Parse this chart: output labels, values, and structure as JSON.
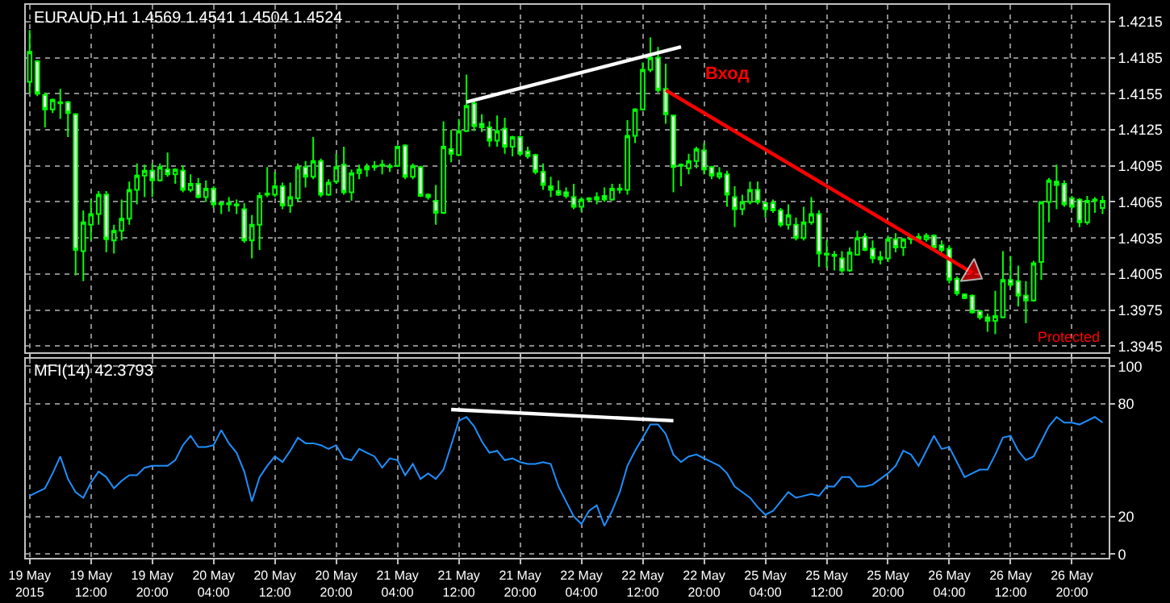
{
  "chart_data": [
    {
      "type": "candlestick",
      "title": "EURAUD,H1 1.4569 1.4541 1.4504 1.4524",
      "categories": [
        "19 May 2015",
        null,
        null,
        null,
        null,
        null,
        null,
        null,
        "19 May 12:00",
        null,
        null,
        null,
        null,
        null,
        null,
        null,
        "19 May 20:00",
        null,
        null,
        null,
        null,
        null,
        null,
        null,
        "20 May 04:00",
        null,
        null,
        null,
        null,
        null,
        null,
        null,
        "20 May 12:00",
        null,
        null,
        null,
        null,
        null,
        null,
        null,
        "20 May 20:00",
        null,
        null,
        null,
        null,
        null,
        null,
        null,
        "21 May 04:00",
        null,
        null,
        null,
        null,
        null,
        null,
        null,
        "21 May 12:00",
        null,
        null,
        null,
        null,
        null,
        null,
        null,
        "21 May 20:00",
        null,
        null,
        null,
        null,
        null,
        null,
        null,
        "22 May 04:00",
        null,
        null,
        null,
        null,
        null,
        null,
        null,
        "22 May 12:00",
        null,
        null,
        null,
        null,
        null,
        null,
        null,
        "22 May 20:00",
        null,
        null,
        null,
        null,
        null,
        null,
        null,
        "25 May 04:00",
        null,
        null,
        null,
        null,
        null,
        null,
        null,
        "25 May 12:00",
        null,
        null,
        null,
        null,
        null,
        null,
        null,
        "25 May 20:00",
        null,
        null,
        null,
        null,
        null,
        null,
        null,
        "26 May 04:00",
        null,
        null,
        null,
        null,
        null,
        null,
        null,
        "26 May 12:00",
        null,
        null,
        null,
        null,
        null,
        null,
        null,
        "26 May 20:00",
        null,
        null,
        null,
        null
      ],
      "ohlc": [
        [
          1.4165,
          1.4208,
          1.4155,
          1.419
        ],
        [
          1.4182,
          1.4183,
          1.4153,
          1.4155
        ],
        [
          1.4154,
          1.4156,
          1.4127,
          1.4142
        ],
        [
          1.4142,
          1.4151,
          1.4139,
          1.415
        ],
        [
          1.4147,
          1.4159,
          1.4134,
          1.4148
        ],
        [
          1.4148,
          1.4149,
          1.4119,
          1.4139
        ],
        [
          1.4138,
          1.4139,
          1.4004,
          1.4025
        ],
        [
          1.4024,
          1.4058,
          1.3999,
          1.4048
        ],
        [
          1.4046,
          1.4067,
          1.4033,
          1.4055
        ],
        [
          1.4055,
          1.4074,
          1.4046,
          1.4071
        ],
        [
          1.4071,
          1.4074,
          1.4023,
          1.4034
        ],
        [
          1.4033,
          1.4046,
          1.4022,
          1.4041
        ],
        [
          1.4041,
          1.4067,
          1.4033,
          1.4051
        ],
        [
          1.4051,
          1.4082,
          1.4046,
          1.4075
        ],
        [
          1.4075,
          1.4097,
          1.4063,
          1.4087
        ],
        [
          1.4087,
          1.4096,
          1.4069,
          1.4091
        ],
        [
          1.4091,
          1.4097,
          1.4069,
          1.4083
        ],
        [
          1.4083,
          1.4097,
          1.4082,
          1.4094
        ],
        [
          1.4092,
          1.4106,
          1.4086,
          1.4088
        ],
        [
          1.4088,
          1.4093,
          1.408,
          1.4092
        ],
        [
          1.4091,
          1.4095,
          1.4073,
          1.4075
        ],
        [
          1.4075,
          1.4088,
          1.4073,
          1.408
        ],
        [
          1.408,
          1.4085,
          1.4068,
          1.4069
        ],
        [
          1.4069,
          1.4083,
          1.4065,
          1.4076
        ],
        [
          1.4076,
          1.4078,
          1.406,
          1.4063
        ],
        [
          1.4063,
          1.4065,
          1.4055,
          1.4064
        ],
        [
          1.4064,
          1.4069,
          1.4057,
          1.4063
        ],
        [
          1.4063,
          1.4067,
          1.4055,
          1.4062
        ],
        [
          1.4059,
          1.4064,
          1.4031,
          1.4033
        ],
        [
          1.4033,
          1.4054,
          1.4018,
          1.4046
        ],
        [
          1.4046,
          1.4073,
          1.4025,
          1.407
        ],
        [
          1.4071,
          1.4094,
          1.4069,
          1.4072
        ],
        [
          1.4071,
          1.409,
          1.4069,
          1.4078
        ],
        [
          1.4078,
          1.4081,
          1.4059,
          1.4062
        ],
        [
          1.4062,
          1.4081,
          1.4056,
          1.4069
        ],
        [
          1.4068,
          1.4097,
          1.4065,
          1.4094
        ],
        [
          1.4094,
          1.4099,
          1.4077,
          1.4086
        ],
        [
          1.4086,
          1.4119,
          1.4084,
          1.4099
        ],
        [
          1.4099,
          1.4101,
          1.4069,
          1.4071
        ],
        [
          1.4071,
          1.4084,
          1.407,
          1.4081
        ],
        [
          1.4082,
          1.4105,
          1.408,
          1.4094
        ],
        [
          1.4096,
          1.4111,
          1.4071,
          1.4073
        ],
        [
          1.4073,
          1.4092,
          1.4066,
          1.4089
        ],
        [
          1.4089,
          1.4096,
          1.4084,
          1.4092
        ],
        [
          1.4092,
          1.4097,
          1.4086,
          1.4094
        ],
        [
          1.4094,
          1.4099,
          1.4091,
          1.4095
        ],
        [
          1.4095,
          1.41,
          1.4088,
          1.4096
        ],
        [
          1.4095,
          1.4097,
          1.409,
          1.4094
        ],
        [
          1.4095,
          1.4112,
          1.4094,
          1.4111
        ],
        [
          1.4112,
          1.4113,
          1.4084,
          1.4086
        ],
        [
          1.4086,
          1.4097,
          1.4084,
          1.4095
        ],
        [
          1.4094,
          1.4095,
          1.4069,
          1.407
        ],
        [
          1.4071,
          1.4072,
          1.4067,
          1.4069
        ],
        [
          1.4066,
          1.4079,
          1.4046,
          1.4056
        ],
        [
          1.4056,
          1.4132,
          1.4055,
          1.4111
        ],
        [
          1.4109,
          1.4125,
          1.4098,
          1.4105
        ],
        [
          1.4104,
          1.4134,
          1.4103,
          1.4124
        ],
        [
          1.4124,
          1.4171,
          1.4123,
          1.4145
        ],
        [
          1.4147,
          1.415,
          1.4124,
          1.4128
        ],
        [
          1.413,
          1.4138,
          1.4123,
          1.4127
        ],
        [
          1.4127,
          1.4132,
          1.4111,
          1.4116
        ],
        [
          1.4116,
          1.4137,
          1.4111,
          1.4124
        ],
        [
          1.4126,
          1.4135,
          1.4105,
          1.4111
        ],
        [
          1.4111,
          1.412,
          1.4103,
          1.4119
        ],
        [
          1.4119,
          1.412,
          1.4103,
          1.4105
        ],
        [
          1.4107,
          1.4111,
          1.4101,
          1.4103
        ],
        [
          1.4104,
          1.4105,
          1.4088,
          1.409
        ],
        [
          1.409,
          1.4097,
          1.4075,
          1.4079
        ],
        [
          1.4078,
          1.4086,
          1.4069,
          1.4075
        ],
        [
          1.4074,
          1.4083,
          1.407,
          1.4071
        ],
        [
          1.4073,
          1.4077,
          1.4068,
          1.407
        ],
        [
          1.4069,
          1.408,
          1.4059,
          1.4061
        ],
        [
          1.4061,
          1.4069,
          1.4057,
          1.4067
        ],
        [
          1.4067,
          1.4069,
          1.4065,
          1.4068
        ],
        [
          1.4067,
          1.4073,
          1.4063,
          1.4069
        ],
        [
          1.407,
          1.4077,
          1.4065,
          1.4067
        ],
        [
          1.4067,
          1.408,
          1.4066,
          1.4076
        ],
        [
          1.4076,
          1.408,
          1.4072,
          1.4075
        ],
        [
          1.4075,
          1.4133,
          1.4071,
          1.412
        ],
        [
          1.412,
          1.4143,
          1.4114,
          1.4142
        ],
        [
          1.4142,
          1.4181,
          1.4141,
          1.4175
        ],
        [
          1.4175,
          1.4202,
          1.4173,
          1.4185
        ],
        [
          1.4185,
          1.4194,
          1.4156,
          1.4158
        ],
        [
          1.4159,
          1.418,
          1.413,
          1.4138
        ],
        [
          1.4137,
          1.4137,
          1.4073,
          1.4094
        ],
        [
          1.4095,
          1.4097,
          1.4078,
          1.4096
        ],
        [
          1.4093,
          1.4105,
          1.4088,
          1.4099
        ],
        [
          1.4099,
          1.4111,
          1.4093,
          1.4109
        ],
        [
          1.4108,
          1.4114,
          1.4088,
          1.4092
        ],
        [
          1.4094,
          1.4095,
          1.4084,
          1.4087
        ],
        [
          1.4086,
          1.4094,
          1.4084,
          1.4089
        ],
        [
          1.4088,
          1.4091,
          1.4061,
          1.4071
        ],
        [
          1.4069,
          1.4078,
          1.4044,
          1.4059
        ],
        [
          1.4059,
          1.4071,
          1.4054,
          1.4065
        ],
        [
          1.4065,
          1.4082,
          1.4063,
          1.4075
        ],
        [
          1.4075,
          1.4082,
          1.4063,
          1.4065
        ],
        [
          1.4064,
          1.4065,
          1.4052,
          1.4059
        ],
        [
          1.4064,
          1.4067,
          1.4056,
          1.4058
        ],
        [
          1.4058,
          1.406,
          1.4044,
          1.4046
        ],
        [
          1.4046,
          1.4063,
          1.4042,
          1.4054
        ],
        [
          1.4046,
          1.4052,
          1.4033,
          1.4035
        ],
        [
          1.4035,
          1.4061,
          1.4033,
          1.4048
        ],
        [
          1.4048,
          1.4069,
          1.4046,
          1.4055
        ],
        [
          1.4055,
          1.4058,
          1.4011,
          1.4022
        ],
        [
          1.4021,
          1.4033,
          1.401,
          1.4022
        ],
        [
          1.4021,
          1.4024,
          1.4008,
          1.402
        ],
        [
          1.4018,
          1.4024,
          1.4006,
          1.4008
        ],
        [
          1.4008,
          1.4027,
          1.4007,
          1.4023
        ],
        [
          1.4021,
          1.4041,
          1.4021,
          1.4035
        ],
        [
          1.4036,
          1.4039,
          1.4024,
          1.4025
        ],
        [
          1.4026,
          1.4033,
          1.4014,
          1.4018
        ],
        [
          1.4019,
          1.4024,
          1.4013,
          1.4017
        ],
        [
          1.4018,
          1.4037,
          1.4015,
          1.4034
        ],
        [
          1.4034,
          1.4039,
          1.4023,
          1.4027
        ],
        [
          1.4027,
          1.4035,
          1.402,
          1.4034
        ],
        [
          1.4034,
          1.4037,
          1.403,
          1.4035
        ],
        [
          1.4034,
          1.4039,
          1.4032,
          1.4036
        ],
        [
          1.4034,
          1.4039,
          1.4032,
          1.4037
        ],
        [
          1.4037,
          1.4038,
          1.4025,
          1.4027
        ],
        [
          1.4029,
          1.4033,
          1.4023,
          1.4025
        ],
        [
          1.4026,
          1.4029,
          1.3997,
          1.4
        ],
        [
          1.4001,
          1.4003,
          1.3987,
          1.3989
        ],
        [
          1.3988,
          1.3989,
          1.3984,
          1.3985
        ],
        [
          1.3987,
          1.3988,
          1.3972,
          1.3973
        ],
        [
          1.3974,
          1.3975,
          1.3967,
          1.3969
        ],
        [
          1.3969,
          1.3972,
          1.3957,
          1.3966
        ],
        [
          1.3966,
          1.3991,
          1.3955,
          1.397
        ],
        [
          1.3969,
          1.4024,
          1.3968,
          1.4
        ],
        [
          1.4,
          1.402,
          1.3994,
          1.3996
        ],
        [
          1.3999,
          1.4012,
          1.3978,
          1.3987
        ],
        [
          1.3987,
          1.3999,
          1.3964,
          1.3983
        ],
        [
          1.3983,
          1.4016,
          1.3982,
          1.4014
        ],
        [
          1.4015,
          1.4065,
          1.4,
          1.4065
        ],
        [
          1.4065,
          1.4085,
          1.4048,
          1.4083
        ],
        [
          1.4082,
          1.4096,
          1.4059,
          1.4079
        ],
        [
          1.408,
          1.4083,
          1.4061,
          1.4063
        ],
        [
          1.4068,
          1.407,
          1.4059,
          1.4061
        ],
        [
          1.4067,
          1.4068,
          1.4044,
          1.4048
        ],
        [
          1.4048,
          1.407,
          1.4046,
          1.4066
        ],
        [
          1.4067,
          1.4069,
          1.4056,
          1.4066
        ],
        [
          1.406,
          1.407,
          1.4055,
          1.4066
        ]
      ],
      "series": [
        {
          "type": "line",
          "color": "#ffffff",
          "values": [
            null,
            null,
            null,
            null,
            null,
            null,
            null,
            null,
            null,
            null,
            null,
            null,
            null,
            null,
            null,
            null,
            null,
            null,
            null,
            null,
            null,
            null,
            null,
            null,
            null,
            null,
            null,
            null,
            null,
            null,
            null,
            null,
            null,
            null,
            null,
            null,
            null,
            null,
            null,
            null,
            null,
            null,
            null,
            null,
            null,
            null,
            null,
            null,
            null,
            null,
            null,
            null,
            null,
            null,
            null,
            null,
            null,
            1.4148,
            null,
            null,
            null,
            null,
            null,
            null,
            null,
            null,
            null,
            null,
            null,
            null,
            null,
            null,
            null,
            null,
            null,
            null,
            null,
            null,
            null,
            null,
            null,
            null,
            null,
            null,
            null,
            1.4194,
            null,
            null,
            null,
            null,
            null,
            null,
            null,
            null,
            null,
            null,
            null,
            null,
            null,
            null,
            null,
            null,
            null,
            null,
            null,
            null,
            null,
            null,
            null,
            null,
            null,
            null,
            null,
            null,
            null,
            null,
            null,
            null,
            null,
            null,
            null,
            null,
            null,
            null,
            null,
            null,
            null,
            null,
            null,
            null,
            null,
            null,
            null,
            null,
            null,
            null,
            null,
            null,
            null,
            null,
            null
          ]
        },
        {
          "type": "line",
          "color": "#ff0000",
          "marker": "triangle",
          "values": [
            null,
            null,
            null,
            null,
            null,
            null,
            null,
            null,
            null,
            null,
            null,
            null,
            null,
            null,
            null,
            null,
            null,
            null,
            null,
            null,
            null,
            null,
            null,
            null,
            null,
            null,
            null,
            null,
            null,
            null,
            null,
            null,
            null,
            null,
            null,
            null,
            null,
            null,
            null,
            null,
            null,
            null,
            null,
            null,
            null,
            null,
            null,
            null,
            null,
            null,
            null,
            null,
            null,
            null,
            null,
            null,
            null,
            null,
            null,
            null,
            null,
            null,
            null,
            null,
            null,
            null,
            null,
            null,
            null,
            null,
            null,
            null,
            null,
            null,
            null,
            null,
            null,
            null,
            null,
            null,
            null,
            null,
            null,
            1.4158,
            null,
            null,
            null,
            null,
            null,
            null,
            null,
            null,
            null,
            null,
            null,
            null,
            null,
            null,
            null,
            null,
            null,
            null,
            null,
            null,
            null,
            null,
            null,
            null,
            null,
            null,
            null,
            null,
            null,
            null,
            null,
            null,
            null,
            null,
            null,
            null,
            null,
            null,
            null,
            1.4006,
            null,
            null,
            null,
            null,
            null,
            null,
            null,
            null,
            null,
            null,
            null,
            null,
            null,
            null,
            null,
            null,
            null
          ]
        }
      ],
      "annotations": [
        "Вход",
        "Protected"
      ],
      "ylim": [
        1.394,
        1.4229
      ],
      "yticks": [
        1.4215,
        1.4185,
        1.4155,
        1.4125,
        1.4095,
        1.4065,
        1.4035,
        1.4005,
        1.3975,
        1.3945
      ],
      "grid": true,
      "tick_labels": "y"
    },
    {
      "type": "line",
      "title": "MFI(14) 42.3793",
      "categories": [
        "19 May 2015",
        null,
        null,
        null,
        null,
        null,
        null,
        null,
        "19 May 12:00",
        null,
        null,
        null,
        null,
        null,
        null,
        null,
        "19 May 20:00",
        null,
        null,
        null,
        null,
        null,
        null,
        null,
        "20 May 04:00",
        null,
        null,
        null,
        null,
        null,
        null,
        null,
        "20 May 12:00",
        null,
        null,
        null,
        null,
        null,
        null,
        null,
        "20 May 20:00",
        null,
        null,
        null,
        null,
        null,
        null,
        null,
        "21 May 04:00",
        null,
        null,
        null,
        null,
        null,
        null,
        null,
        "21 May 12:00",
        null,
        null,
        null,
        null,
        null,
        null,
        null,
        "21 May 20:00",
        null,
        null,
        null,
        null,
        null,
        null,
        null,
        "22 May 04:00",
        null,
        null,
        null,
        null,
        null,
        null,
        null,
        "22 May 12:00",
        null,
        null,
        null,
        null,
        null,
        null,
        null,
        "22 May 20:00",
        null,
        null,
        null,
        null,
        null,
        null,
        null,
        "25 May 04:00",
        null,
        null,
        null,
        null,
        null,
        null,
        null,
        "25 May 12:00",
        null,
        null,
        null,
        null,
        null,
        null,
        null,
        "25 May 20:00",
        null,
        null,
        null,
        null,
        null,
        null,
        null,
        "26 May 04:00",
        null,
        null,
        null,
        null,
        null,
        null,
        null,
        "26 May 12:00",
        null,
        null,
        null,
        null,
        null,
        null,
        null,
        "26 May 20:00",
        null,
        null,
        null,
        null
      ],
      "series": [
        {
          "color": "#1e90ff",
          "values": [
            31,
            33,
            35,
            43,
            52,
            40,
            33,
            30,
            38,
            44,
            41,
            35,
            39,
            42,
            42,
            46,
            47,
            47,
            47,
            50,
            58,
            63,
            57,
            57,
            58,
            66,
            59,
            54,
            44,
            28,
            41,
            47,
            52,
            49,
            55,
            62,
            59,
            59,
            58,
            56,
            58,
            51,
            50,
            56,
            54,
            52,
            46,
            51,
            50,
            42,
            48,
            40,
            43,
            40,
            45,
            58,
            71,
            73,
            68,
            60,
            54,
            55,
            50,
            51,
            49,
            48,
            48,
            49,
            48,
            36,
            28,
            20,
            16,
            23,
            26,
            15,
            23,
            33,
            47,
            55,
            62,
            69,
            69,
            64,
            53,
            49,
            52,
            53,
            51,
            49,
            47,
            43,
            36,
            33,
            30,
            25,
            21,
            23,
            28,
            33,
            30,
            31,
            32,
            31,
            36,
            36,
            41,
            41,
            36,
            36,
            37,
            40,
            43,
            47,
            55,
            53,
            47,
            55,
            63,
            56,
            57,
            49,
            41,
            43,
            45,
            45,
            53,
            62,
            63,
            55,
            50,
            52,
            60,
            68,
            73,
            70,
            70,
            69,
            71,
            73,
            70
          ]
        },
        {
          "color": "#ffffff",
          "values": [
            null,
            null,
            null,
            null,
            null,
            null,
            null,
            null,
            null,
            null,
            null,
            null,
            null,
            null,
            null,
            null,
            null,
            null,
            null,
            null,
            null,
            null,
            null,
            null,
            null,
            null,
            null,
            null,
            null,
            null,
            null,
            null,
            null,
            null,
            null,
            null,
            null,
            null,
            null,
            null,
            null,
            null,
            null,
            null,
            null,
            null,
            null,
            null,
            null,
            null,
            null,
            null,
            null,
            null,
            null,
            77,
            null,
            null,
            null,
            null,
            null,
            null,
            null,
            null,
            null,
            null,
            null,
            null,
            null,
            null,
            null,
            null,
            null,
            null,
            null,
            null,
            null,
            null,
            null,
            null,
            null,
            null,
            null,
            null,
            71,
            null,
            null,
            null,
            null,
            null,
            null,
            null,
            null,
            null,
            null,
            null,
            null,
            null,
            null,
            null,
            null,
            null,
            null,
            null,
            null,
            null,
            null,
            null,
            null,
            null,
            null,
            null,
            null,
            null,
            null,
            null,
            null,
            null,
            null,
            null,
            null,
            null,
            null,
            null,
            null,
            null,
            null,
            null,
            null,
            null,
            null,
            null,
            null,
            null,
            null,
            null,
            null,
            null,
            null,
            null,
            null
          ]
        }
      ],
      "ylim": [
        -2,
        104
      ],
      "yticks": [
        0,
        20,
        80,
        100
      ],
      "grid": true
    }
  ]
}
